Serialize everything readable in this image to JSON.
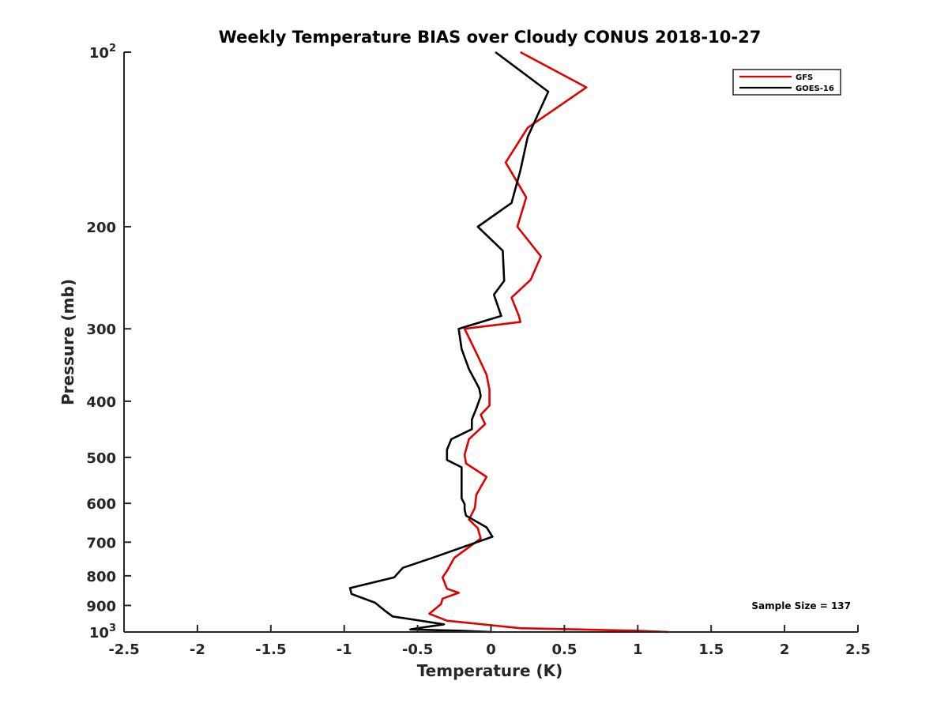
{
  "chart_data": {
    "type": "line",
    "title": "Weekly Temperature BIAS over Cloudy CONUS 2018-10-27",
    "xlabel": "Temperature (K)",
    "ylabel": "Pressure (mb)",
    "xlim": [
      -2.5,
      2.5
    ],
    "ylim": [
      100,
      1000
    ],
    "y_scale": "log",
    "y_reversed": true,
    "grid": false,
    "legend_position": "top-right",
    "x_ticks": [
      -2.5,
      -2,
      -1.5,
      -1,
      -0.5,
      0,
      0.5,
      1,
      1.5,
      2,
      2.5
    ],
    "x_tick_labels": [
      "-2.5",
      "-2",
      "-1.5",
      "-1",
      "-0.5",
      "0",
      "0.5",
      "1",
      "1.5",
      "2",
      "2.5"
    ],
    "y_ticks": [
      100,
      200,
      300,
      400,
      500,
      600,
      700,
      800,
      900,
      1000
    ],
    "y_tick_labels": [
      {
        "base": "10",
        "exp": "2"
      },
      {
        "base": "200",
        "exp": ""
      },
      {
        "base": "300",
        "exp": ""
      },
      {
        "base": "400",
        "exp": ""
      },
      {
        "base": "500",
        "exp": ""
      },
      {
        "base": "600",
        "exp": ""
      },
      {
        "base": "700",
        "exp": ""
      },
      {
        "base": "800",
        "exp": ""
      },
      {
        "base": "900",
        "exp": ""
      },
      {
        "base": "10",
        "exp": "3"
      }
    ],
    "annotation": "Sample Size = 137",
    "series": [
      {
        "name": "GFS",
        "color": "#e00000",
        "points": [
          [
            0.2,
            100
          ],
          [
            0.65,
            115
          ],
          [
            0.25,
            135
          ],
          [
            0.1,
            155
          ],
          [
            0.24,
            178
          ],
          [
            0.18,
            200
          ],
          [
            0.34,
            225
          ],
          [
            0.27,
            247
          ],
          [
            0.14,
            265
          ],
          [
            0.19,
            285
          ],
          [
            0.2,
            292
          ],
          [
            -0.18,
            300
          ],
          [
            -0.1,
            330
          ],
          [
            -0.03,
            360
          ],
          [
            -0.01,
            382
          ],
          [
            -0.01,
            407
          ],
          [
            -0.07,
            422
          ],
          [
            -0.04,
            438
          ],
          [
            -0.15,
            465
          ],
          [
            -0.18,
            495
          ],
          [
            -0.17,
            512
          ],
          [
            -0.03,
            540
          ],
          [
            -0.1,
            580
          ],
          [
            -0.11,
            611
          ],
          [
            -0.15,
            640
          ],
          [
            -0.09,
            662
          ],
          [
            -0.07,
            690
          ],
          [
            -0.25,
            745
          ],
          [
            -0.3,
            785
          ],
          [
            -0.33,
            805
          ],
          [
            -0.3,
            842
          ],
          [
            -0.22,
            856
          ],
          [
            -0.33,
            876
          ],
          [
            -0.34,
            895
          ],
          [
            -0.42,
            930
          ],
          [
            -0.3,
            956
          ],
          [
            0.2,
            985
          ],
          [
            1.0,
            995
          ],
          [
            1.21,
            1000
          ]
        ]
      },
      {
        "name": "GOES-16",
        "color": "#000000",
        "points": [
          [
            0.03,
            100
          ],
          [
            0.39,
            117
          ],
          [
            0.25,
            140
          ],
          [
            0.2,
            160
          ],
          [
            0.14,
            182
          ],
          [
            -0.09,
            200
          ],
          [
            0.08,
            220
          ],
          [
            0.09,
            248
          ],
          [
            0.02,
            262
          ],
          [
            0.07,
            285
          ],
          [
            -0.22,
            300
          ],
          [
            -0.2,
            325
          ],
          [
            -0.15,
            352
          ],
          [
            -0.08,
            380
          ],
          [
            -0.07,
            392
          ],
          [
            -0.1,
            412
          ],
          [
            -0.13,
            430
          ],
          [
            -0.13,
            447
          ],
          [
            -0.27,
            465
          ],
          [
            -0.3,
            485
          ],
          [
            -0.3,
            505
          ],
          [
            -0.2,
            520
          ],
          [
            -0.2,
            545
          ],
          [
            -0.2,
            572
          ],
          [
            -0.2,
            588
          ],
          [
            -0.18,
            602
          ],
          [
            -0.18,
            615
          ],
          [
            -0.17,
            630
          ],
          [
            -0.03,
            660
          ],
          [
            0.01,
            685
          ],
          [
            -0.4,
            745
          ],
          [
            -0.6,
            775
          ],
          [
            -0.66,
            805
          ],
          [
            -0.96,
            840
          ],
          [
            -0.95,
            860
          ],
          [
            -0.79,
            890
          ],
          [
            -0.72,
            920
          ],
          [
            -0.67,
            940
          ],
          [
            -0.32,
            970
          ],
          [
            -0.5,
            985
          ],
          [
            -0.55,
            990
          ],
          [
            -0.2,
            995
          ],
          [
            0.0,
            1000
          ]
        ]
      }
    ]
  }
}
